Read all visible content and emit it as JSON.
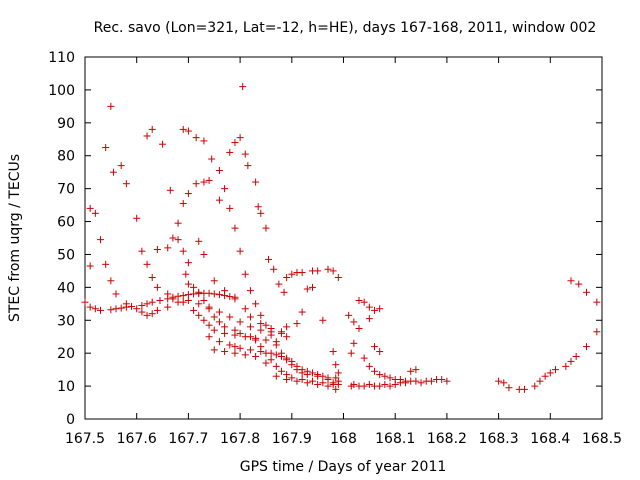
{
  "chart_data": {
    "type": "scatter",
    "title": "Rec. savo (Lon=321, Lat=-12, h=HE), days 167-168, 2011, window 002",
    "xlabel": "GPS time / Days of year 2011",
    "ylabel": "STEC from uqrg / TECUs",
    "xlim": [
      167.5,
      168.5
    ],
    "ylim": [
      0,
      110
    ],
    "xticks": [
      167.5,
      167.6,
      167.7,
      167.8,
      167.9,
      168,
      168.1,
      168.2,
      168.3,
      168.4,
      168.5
    ],
    "xtick_labels": [
      "167.5",
      "167.6",
      "167.7",
      "167.8",
      "167.9",
      "168",
      "168.1",
      "168.2",
      "168.3",
      "168.4",
      "168.5"
    ],
    "yticks": [
      0,
      10,
      20,
      30,
      40,
      50,
      60,
      70,
      80,
      90,
      100,
      110
    ],
    "ytick_labels": [
      "0",
      "10",
      "20",
      "30",
      "40",
      "50",
      "60",
      "70",
      "80",
      "90",
      "100",
      "110"
    ],
    "grid": false,
    "marker": "+",
    "color": "#cc0000",
    "points": [
      [
        167.5,
        35.5
      ],
      [
        167.51,
        34.0
      ],
      [
        167.52,
        33.5
      ],
      [
        167.53,
        33.0
      ],
      [
        167.55,
        33.2
      ],
      [
        167.56,
        33.5
      ],
      [
        167.57,
        33.7
      ],
      [
        167.58,
        34.0
      ],
      [
        167.59,
        34.2
      ],
      [
        167.61,
        34.5
      ],
      [
        167.62,
        35.0
      ],
      [
        167.63,
        35.5
      ],
      [
        167.645,
        36.0
      ],
      [
        167.66,
        36.5
      ],
      [
        167.67,
        37.0
      ],
      [
        167.68,
        37.3
      ],
      [
        167.69,
        37.5
      ],
      [
        167.7,
        37.8
      ],
      [
        167.71,
        38.0
      ],
      [
        167.72,
        38.1
      ],
      [
        167.73,
        38.2
      ],
      [
        167.74,
        38.2
      ],
      [
        167.75,
        38.0
      ],
      [
        167.76,
        37.8
      ],
      [
        167.77,
        37.5
      ],
      [
        167.78,
        37.2
      ],
      [
        167.79,
        37.0
      ],
      [
        167.51,
        64.0
      ],
      [
        167.52,
        62.5
      ],
      [
        167.53,
        54.5
      ],
      [
        167.54,
        47.0
      ],
      [
        167.55,
        42.0
      ],
      [
        167.56,
        38.0
      ],
      [
        167.58,
        35.0
      ],
      [
        167.6,
        33.5
      ],
      [
        167.61,
        32.5
      ],
      [
        167.62,
        31.5
      ],
      [
        167.63,
        32.0
      ],
      [
        167.64,
        33.0
      ],
      [
        167.66,
        34.0
      ],
      [
        167.68,
        35.5
      ],
      [
        167.7,
        36.0
      ],
      [
        167.72,
        35.0
      ],
      [
        167.74,
        34.0
      ],
      [
        167.76,
        32.5
      ],
      [
        167.78,
        31.0
      ],
      [
        167.8,
        29.5
      ],
      [
        167.82,
        28.0
      ],
      [
        167.84,
        27.0
      ],
      [
        167.86,
        26.5
      ],
      [
        167.88,
        26.0
      ],
      [
        167.89,
        25.0
      ],
      [
        167.51,
        46.5
      ],
      [
        167.54,
        82.5
      ],
      [
        167.55,
        95.0
      ],
      [
        167.555,
        75.0
      ],
      [
        167.57,
        77.0
      ],
      [
        167.58,
        71.5
      ],
      [
        167.6,
        61.0
      ],
      [
        167.61,
        51.0
      ],
      [
        167.62,
        47.0
      ],
      [
        167.63,
        43.0
      ],
      [
        167.64,
        40.0
      ],
      [
        167.66,
        38.0
      ],
      [
        167.67,
        36.5
      ],
      [
        167.69,
        35.5
      ],
      [
        167.71,
        33.0
      ],
      [
        167.72,
        31.5
      ],
      [
        167.73,
        30.0
      ],
      [
        167.74,
        28.5
      ],
      [
        167.75,
        27.0
      ],
      [
        167.77,
        26.0
      ],
      [
        167.79,
        25.5
      ],
      [
        167.81,
        25.0
      ],
      [
        167.83,
        24.5
      ],
      [
        167.85,
        24.0
      ],
      [
        167.87,
        23.5
      ],
      [
        167.62,
        86.0
      ],
      [
        167.63,
        88.0
      ],
      [
        167.65,
        83.5
      ],
      [
        167.665,
        69.5
      ],
      [
        167.68,
        59.5
      ],
      [
        167.69,
        51.0
      ],
      [
        167.695,
        44.0
      ],
      [
        167.7,
        41.0
      ],
      [
        167.71,
        40.0
      ],
      [
        167.72,
        38.5
      ],
      [
        167.73,
        36.0
      ],
      [
        167.74,
        33.5
      ],
      [
        167.75,
        31.0
      ],
      [
        167.76,
        29.5
      ],
      [
        167.77,
        28.0
      ],
      [
        167.79,
        27.0
      ],
      [
        167.8,
        26.0
      ],
      [
        167.82,
        25.0
      ],
      [
        167.83,
        24.0
      ],
      [
        167.84,
        22.0
      ],
      [
        167.85,
        20.0
      ],
      [
        167.86,
        18.0
      ],
      [
        167.87,
        16.0
      ],
      [
        167.88,
        14.5
      ],
      [
        167.89,
        13.5
      ],
      [
        167.9,
        12.5
      ],
      [
        167.92,
        12.0
      ],
      [
        167.94,
        11.5
      ],
      [
        167.96,
        11.0
      ],
      [
        167.98,
        10.5
      ],
      [
        167.69,
        88.0
      ],
      [
        167.7,
        87.5
      ],
      [
        167.715,
        85.5
      ],
      [
        167.73,
        84.5
      ],
      [
        167.745,
        79.0
      ],
      [
        167.76,
        75.5
      ],
      [
        167.77,
        70.0
      ],
      [
        167.78,
        64.0
      ],
      [
        167.79,
        58.0
      ],
      [
        167.8,
        51.0
      ],
      [
        167.81,
        44.0
      ],
      [
        167.82,
        39.0
      ],
      [
        167.83,
        35.0
      ],
      [
        167.84,
        31.5
      ],
      [
        167.85,
        28.5
      ],
      [
        167.86,
        25.5
      ],
      [
        167.87,
        22.5
      ],
      [
        167.88,
        20.0
      ],
      [
        167.89,
        18.0
      ],
      [
        167.9,
        16.5
      ],
      [
        167.91,
        15.0
      ],
      [
        167.92,
        14.0
      ],
      [
        167.93,
        13.5
      ],
      [
        167.95,
        13.0
      ],
      [
        167.97,
        12.5
      ],
      [
        167.69,
        65.5
      ],
      [
        167.7,
        68.5
      ],
      [
        167.715,
        71.5
      ],
      [
        167.73,
        72.0
      ],
      [
        167.74,
        72.5
      ],
      [
        167.76,
        66.5
      ],
      [
        167.78,
        81.0
      ],
      [
        167.79,
        84.0
      ],
      [
        167.8,
        85.5
      ],
      [
        167.805,
        101.0
      ],
      [
        167.81,
        80.5
      ],
      [
        167.815,
        77.0
      ],
      [
        167.83,
        72.0
      ],
      [
        167.835,
        64.5
      ],
      [
        167.84,
        62.5
      ],
      [
        167.85,
        58.0
      ],
      [
        167.855,
        48.5
      ],
      [
        167.865,
        45.5
      ],
      [
        167.875,
        41.0
      ],
      [
        167.885,
        38.5
      ],
      [
        167.89,
        43.0
      ],
      [
        167.9,
        44.0
      ],
      [
        167.91,
        44.5
      ],
      [
        167.92,
        44.5
      ],
      [
        167.94,
        45.0
      ],
      [
        167.95,
        45.0
      ],
      [
        167.97,
        45.5
      ],
      [
        167.98,
        45.0
      ],
      [
        167.99,
        43.0
      ],
      [
        167.64,
        51.5
      ],
      [
        167.66,
        52.0
      ],
      [
        167.67,
        55.0
      ],
      [
        167.68,
        54.5
      ],
      [
        167.7,
        47.5
      ],
      [
        167.72,
        54.0
      ],
      [
        167.73,
        50.0
      ],
      [
        167.75,
        42.0
      ],
      [
        167.77,
        39.0
      ],
      [
        167.79,
        36.5
      ],
      [
        167.81,
        33.5
      ],
      [
        167.82,
        31.0
      ],
      [
        167.84,
        29.0
      ],
      [
        167.86,
        27.5
      ],
      [
        167.88,
        26.5
      ],
      [
        167.89,
        28.0
      ],
      [
        167.91,
        29.0
      ],
      [
        167.92,
        32.5
      ],
      [
        167.93,
        39.5
      ],
      [
        167.94,
        40.0
      ],
      [
        167.96,
        30.0
      ],
      [
        167.74,
        25.0
      ],
      [
        167.76,
        23.5
      ],
      [
        167.78,
        22.5
      ],
      [
        167.79,
        22.0
      ],
      [
        167.8,
        21.5
      ],
      [
        167.82,
        21.0
      ],
      [
        167.84,
        20.5
      ],
      [
        167.86,
        20.0
      ],
      [
        167.87,
        19.5
      ],
      [
        167.88,
        19.0
      ],
      [
        167.89,
        18.5
      ],
      [
        167.9,
        17.5
      ],
      [
        167.91,
        16.0
      ],
      [
        167.92,
        15.0
      ],
      [
        167.93,
        14.5
      ],
      [
        167.94,
        14.0
      ],
      [
        167.95,
        13.5
      ],
      [
        167.96,
        13.0
      ],
      [
        167.97,
        12.0
      ],
      [
        167.98,
        11.0
      ],
      [
        167.75,
        21.0
      ],
      [
        167.77,
        20.5
      ],
      [
        167.79,
        20.0
      ],
      [
        167.81,
        19.5
      ],
      [
        167.83,
        19.0
      ],
      [
        167.85,
        17.0
      ],
      [
        167.87,
        13.0
      ],
      [
        167.89,
        12.0
      ],
      [
        167.91,
        11.5
      ],
      [
        167.93,
        11.0
      ],
      [
        167.95,
        10.5
      ],
      [
        167.97,
        10.0
      ],
      [
        167.985,
        9.0
      ],
      [
        167.98,
        20.5
      ],
      [
        167.985,
        16.5
      ],
      [
        167.99,
        14.0
      ],
      [
        167.99,
        10.5
      ],
      [
        167.985,
        12.5
      ],
      [
        167.99,
        11.5
      ],
      [
        168.01,
        31.5
      ],
      [
        168.02,
        29.5
      ],
      [
        168.03,
        27.5
      ],
      [
        168.03,
        36.0
      ],
      [
        168.04,
        35.5
      ],
      [
        168.05,
        34.0
      ],
      [
        168.06,
        33.0
      ],
      [
        168.07,
        33.5
      ],
      [
        168.05,
        30.5
      ],
      [
        168.06,
        22.0
      ],
      [
        168.07,
        20.5
      ],
      [
        168.015,
        20.0
      ],
      [
        168.02,
        23.0
      ],
      [
        168.04,
        18.5
      ],
      [
        168.05,
        16.0
      ],
      [
        168.06,
        14.5
      ],
      [
        168.07,
        13.5
      ],
      [
        168.08,
        13.0
      ],
      [
        168.09,
        12.5
      ],
      [
        168.1,
        12.0
      ],
      [
        168.11,
        12.0
      ],
      [
        168.12,
        11.5
      ],
      [
        168.13,
        14.5
      ],
      [
        168.14,
        15.0
      ],
      [
        168.015,
        10.0
      ],
      [
        168.02,
        10.5
      ],
      [
        168.03,
        10.0
      ],
      [
        168.04,
        10.0
      ],
      [
        168.05,
        10.5
      ],
      [
        168.06,
        10.0
      ],
      [
        168.07,
        10.0
      ],
      [
        168.08,
        10.5
      ],
      [
        168.09,
        10.0
      ],
      [
        168.1,
        10.5
      ],
      [
        168.11,
        11.0
      ],
      [
        168.12,
        11.0
      ],
      [
        168.13,
        11.5
      ],
      [
        168.14,
        11.5
      ],
      [
        168.15,
        11.0
      ],
      [
        168.16,
        11.5
      ],
      [
        168.17,
        11.5
      ],
      [
        168.18,
        12.0
      ],
      [
        168.19,
        12.0
      ],
      [
        168.2,
        11.5
      ],
      [
        168.3,
        11.5
      ],
      [
        168.31,
        11.0
      ],
      [
        168.32,
        9.5
      ],
      [
        168.34,
        9.0
      ],
      [
        168.35,
        9.0
      ],
      [
        168.37,
        10.0
      ],
      [
        168.38,
        11.5
      ],
      [
        168.39,
        13.0
      ],
      [
        168.4,
        14.0
      ],
      [
        168.41,
        15.0
      ],
      [
        168.43,
        16.0
      ],
      [
        168.44,
        17.5
      ],
      [
        168.45,
        19.0
      ],
      [
        168.47,
        22.0
      ],
      [
        168.49,
        26.5
      ],
      [
        168.49,
        35.5
      ],
      [
        168.47,
        38.5
      ],
      [
        168.455,
        41.0
      ],
      [
        168.44,
        42.0
      ]
    ]
  }
}
